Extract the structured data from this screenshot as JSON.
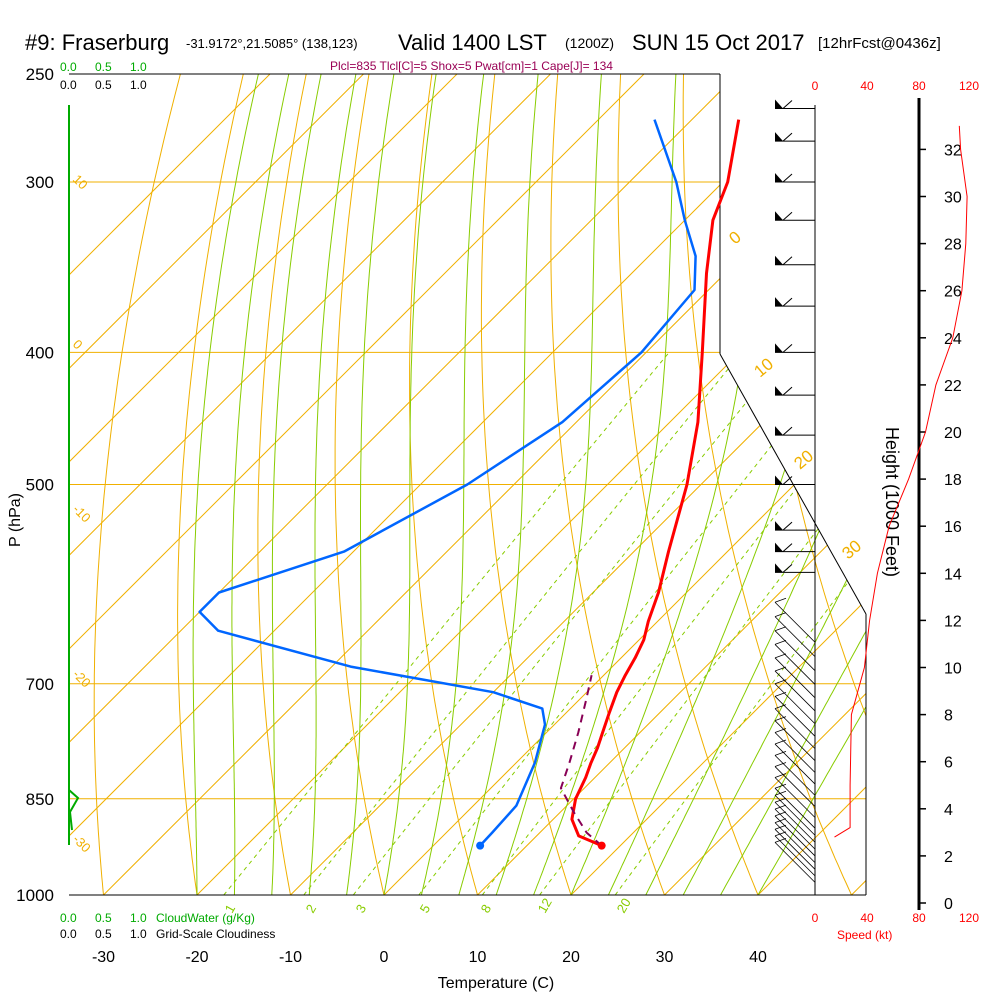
{
  "header": {
    "title": "#9: Fraserburg",
    "coords": "-31.9172°,21.5085° (138,123)",
    "valid": "Valid 1400 LST",
    "valid_z": "(1200Z)",
    "date": "SUN 15 Oct 2017",
    "forecast": "[12hrFcst@0436z]",
    "indices": "Plcl=835 Tlcl[C]=5 Shox=5 Pwat[cm]=1 Cape[J]= 134"
  },
  "colors": {
    "temperature": "#ff0000",
    "dewpoint": "#0066ff",
    "parcel": "#880055",
    "isotherm_adiabat": "#f0b000",
    "moist_adiabat": "#88cc00",
    "mixing_ratio": "#88cc00",
    "cloud": "#00aa00",
    "wind_speed": "#ff0000",
    "indices_text": "#990055"
  },
  "scales": {
    "cloudwater_top": [
      "0.0",
      "0.5",
      "1.0"
    ],
    "cloudiness_top": [
      "0.0",
      "0.5",
      "1.0"
    ],
    "cloudwater_bottom": [
      "0.0",
      "0.5",
      "1.0"
    ],
    "cloudwater_label": "CloudWater (g/Kg)",
    "cloudiness_bottom": [
      "0.0",
      "0.5",
      "1.0"
    ],
    "cloudiness_label": "Grid-Scale Cloudiness",
    "speed_ticks": [
      "0",
      "40",
      "80",
      "120"
    ],
    "speed_label": "Speed (kt)"
  },
  "chart_data": {
    "type": "line",
    "title": "#9: Fraserburg",
    "xlabel": "Temperature (C)",
    "ylabel": "P (hPa)",
    "y2label": "Height (1000 Feet)",
    "x_ticks": [
      "-30",
      "-20",
      "-10",
      "0",
      "10",
      "20",
      "30",
      "40"
    ],
    "pressure_ticks": [
      "250",
      "300",
      "400",
      "500",
      "700",
      "850",
      "1000"
    ],
    "height_ticks": [
      "0",
      "2",
      "4",
      "6",
      "8",
      "10",
      "12",
      "14",
      "16",
      "18",
      "20",
      "22",
      "24",
      "26",
      "28",
      "30",
      "32"
    ],
    "xlim": [
      -35,
      50
    ],
    "log_pressure_axis": true,
    "skewed_isotherms": true,
    "isotherm_labels": [
      "10",
      "0",
      "-10",
      "-20",
      "-30"
    ],
    "theta_labels": [
      "0",
      "10",
      "20",
      "30"
    ],
    "mixing_ratio_labels": [
      "1",
      "2",
      "3",
      "5",
      "8",
      "12",
      "20"
    ],
    "series": [
      {
        "name": "Temperature",
        "points": [
          {
            "p": 920,
            "t": 18
          },
          {
            "p": 905,
            "t": 14.5
          },
          {
            "p": 880,
            "t": 12
          },
          {
            "p": 850,
            "t": 10.2
          },
          {
            "p": 820,
            "t": 9.0
          },
          {
            "p": 800,
            "t": 8.0
          },
          {
            "p": 780,
            "t": 7.1
          },
          {
            "p": 760,
            "t": 6.0
          },
          {
            "p": 735,
            "t": 4.6
          },
          {
            "p": 710,
            "t": 3.2
          },
          {
            "p": 690,
            "t": 2.3
          },
          {
            "p": 670,
            "t": 1.5
          },
          {
            "p": 650,
            "t": 0.5
          },
          {
            "p": 630,
            "t": -1.0
          },
          {
            "p": 600,
            "t": -3.0
          },
          {
            "p": 560,
            "t": -6.3
          },
          {
            "p": 500,
            "t": -11.5
          },
          {
            "p": 450,
            "t": -17.0
          },
          {
            "p": 400,
            "t": -24.0
          },
          {
            "p": 350,
            "t": -32.0
          },
          {
            "p": 320,
            "t": -37.0
          },
          {
            "p": 300,
            "t": -39.5
          },
          {
            "p": 270,
            "t": -45.0
          }
        ]
      },
      {
        "name": "Dewpoint",
        "points": [
          {
            "p": 920,
            "t": 5.0
          },
          {
            "p": 900,
            "t": 4.9
          },
          {
            "p": 860,
            "t": 4.6
          },
          {
            "p": 800,
            "t": 2.0
          },
          {
            "p": 750,
            "t": -1.0
          },
          {
            "p": 730,
            "t": -3.0
          },
          {
            "p": 710,
            "t": -10.0
          },
          {
            "p": 680,
            "t": -28.0
          },
          {
            "p": 640,
            "t": -46.0
          },
          {
            "p": 620,
            "t": -50.0
          },
          {
            "p": 600,
            "t": -50.0
          },
          {
            "p": 560,
            "t": -41.0
          },
          {
            "p": 500,
            "t": -35.0
          },
          {
            "p": 450,
            "t": -31.5
          },
          {
            "p": 400,
            "t": -30.5
          },
          {
            "p": 360,
            "t": -31.5
          },
          {
            "p": 340,
            "t": -35.0
          },
          {
            "p": 320,
            "t": -40.0
          },
          {
            "p": 300,
            "t": -45.0
          },
          {
            "p": 270,
            "t": -54.0
          }
        ]
      },
      {
        "name": "Parcel",
        "points": [
          {
            "p": 920,
            "t": 18.0
          },
          {
            "p": 900,
            "t": 15.0
          },
          {
            "p": 870,
            "t": 11.5
          },
          {
            "p": 835,
            "t": 7.5
          },
          {
            "p": 800,
            "t": 5.7
          },
          {
            "p": 760,
            "t": 3.4
          },
          {
            "p": 720,
            "t": 0.8
          },
          {
            "p": 690,
            "t": -1.3
          }
        ]
      }
    ],
    "surface": {
      "p": 920,
      "temperature": 18,
      "dewpoint": 5
    },
    "wind_speed_profile": {
      "units": "kt",
      "points": [
        {
          "h": 2.8,
          "s": 15
        },
        {
          "h": 3.2,
          "s": 27
        },
        {
          "h": 4,
          "s": 27
        },
        {
          "h": 5,
          "s": 27
        },
        {
          "h": 8,
          "s": 28
        },
        {
          "h": 10,
          "s": 38
        },
        {
          "h": 12,
          "s": 42
        },
        {
          "h": 14,
          "s": 48
        },
        {
          "h": 16,
          "s": 57
        },
        {
          "h": 18,
          "s": 72
        },
        {
          "h": 20,
          "s": 85
        },
        {
          "h": 22,
          "s": 93
        },
        {
          "h": 24,
          "s": 106
        },
        {
          "h": 26,
          "s": 113
        },
        {
          "h": 28,
          "s": 116
        },
        {
          "h": 30,
          "s": 117
        },
        {
          "h": 32,
          "s": 112
        },
        {
          "h": 33,
          "s": 111
        }
      ]
    },
    "wind_barbs": [
      {
        "p": 915,
        "spd": 12
      },
      {
        "p": 905,
        "spd": 12
      },
      {
        "p": 895,
        "spd": 15
      },
      {
        "p": 885,
        "spd": 15
      },
      {
        "p": 875,
        "spd": 15
      },
      {
        "p": 865,
        "spd": 15
      },
      {
        "p": 855,
        "spd": 15
      },
      {
        "p": 845,
        "spd": 15
      },
      {
        "p": 835,
        "spd": 15
      },
      {
        "p": 820,
        "spd": 15
      },
      {
        "p": 805,
        "spd": 15
      },
      {
        "p": 790,
        "spd": 15
      },
      {
        "p": 775,
        "spd": 15
      },
      {
        "p": 760,
        "spd": 15
      },
      {
        "p": 745,
        "spd": 15
      },
      {
        "p": 730,
        "spd": 15
      },
      {
        "p": 715,
        "spd": 15
      },
      {
        "p": 700,
        "spd": 15
      },
      {
        "p": 685,
        "spd": 15
      },
      {
        "p": 670,
        "spd": 15
      },
      {
        "p": 655,
        "spd": 15
      },
      {
        "p": 640,
        "spd": 15
      },
      {
        "p": 625,
        "spd": 15
      },
      {
        "p": 610,
        "spd": 15
      },
      {
        "p": 580,
        "spd": 50
      },
      {
        "p": 560,
        "spd": 50
      },
      {
        "p": 540,
        "spd": 50
      },
      {
        "p": 500,
        "spd": 55
      },
      {
        "p": 460,
        "spd": 65
      },
      {
        "p": 430,
        "spd": 65
      },
      {
        "p": 400,
        "spd": 55
      },
      {
        "p": 370,
        "spd": 60
      },
      {
        "p": 345,
        "spd": 65
      },
      {
        "p": 320,
        "spd": 65
      },
      {
        "p": 300,
        "spd": 65
      },
      {
        "p": 280,
        "spd": 65
      },
      {
        "p": 265,
        "spd": 60
      }
    ]
  }
}
